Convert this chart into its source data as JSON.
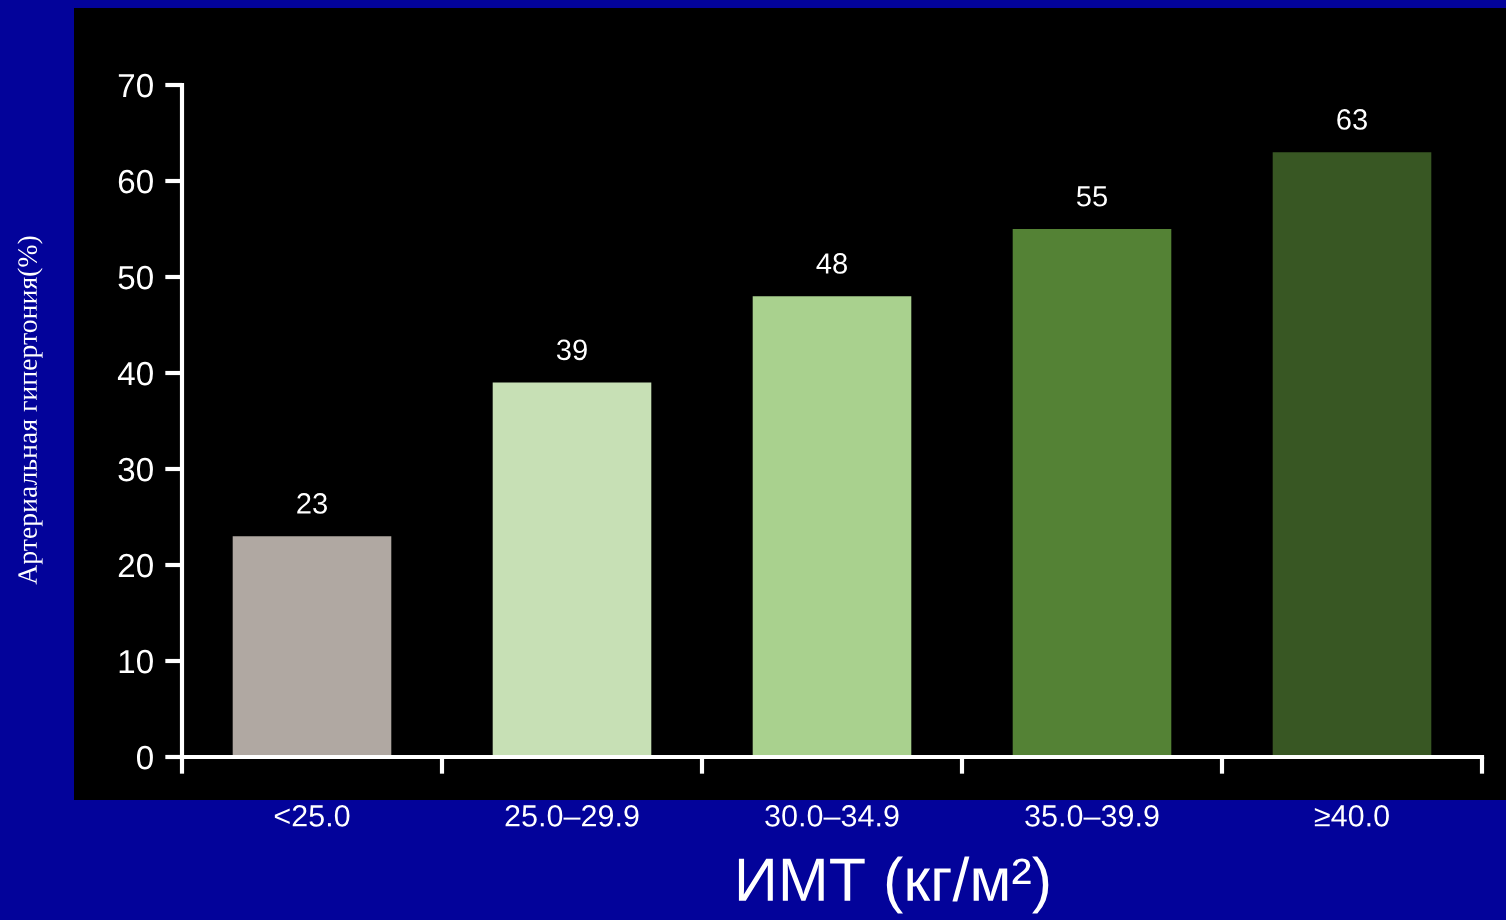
{
  "chart_data": {
    "type": "bar",
    "categories": [
      "<25.0",
      "25.0–29.9",
      "30.0–34.9",
      "35.0–39.9",
      "≥40.0"
    ],
    "values": [
      23,
      39,
      48,
      55,
      63
    ],
    "colors": [
      "#b0a8a2",
      "#c7e0b5",
      "#a9d18e",
      "#548235",
      "#385723"
    ],
    "ylim": [
      0,
      70
    ],
    "yticks": [
      0,
      10,
      20,
      30,
      40,
      50,
      60,
      70
    ],
    "xlabel": "ИМТ (кг/м²)",
    "ylabel": "Артериальная гипертония(%)",
    "data_labels": true,
    "grid": false,
    "legend": false
  }
}
